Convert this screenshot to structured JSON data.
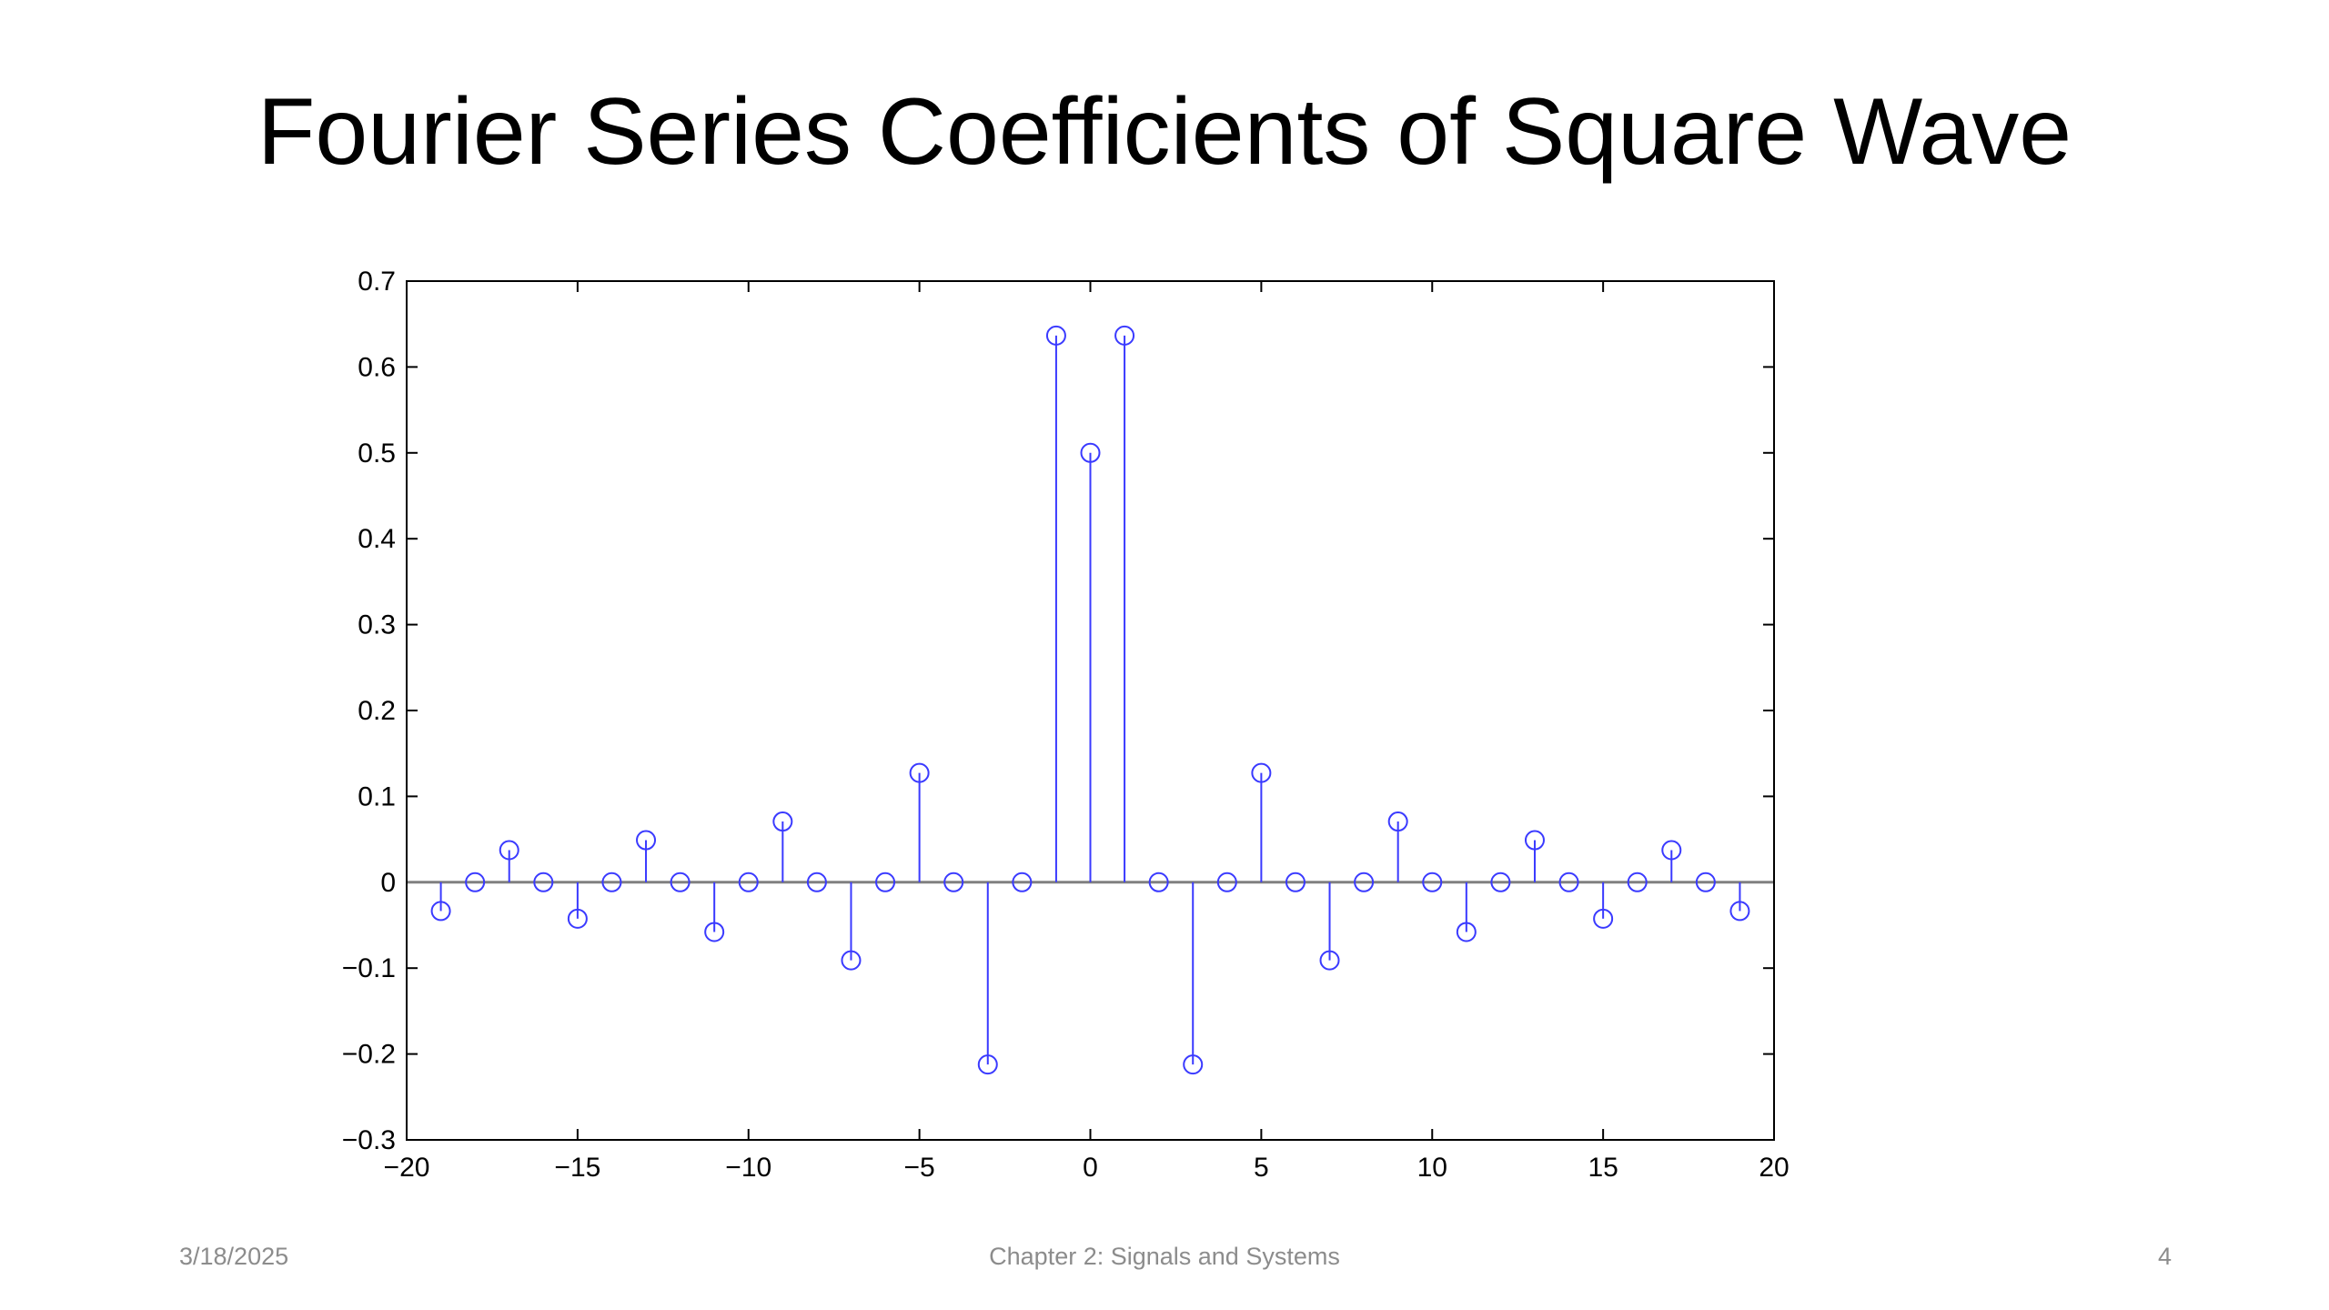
{
  "slide": {
    "title": "Fourier Series Coefficients of Square Wave",
    "footer_date": "3/18/2025",
    "footer_center": "Chapter 2: Signals and Systems",
    "footer_page": "4"
  },
  "chart_data": {
    "type": "stem",
    "title": "",
    "xlabel": "",
    "ylabel": "",
    "xlim": [
      -20,
      20
    ],
    "ylim": [
      -0.3,
      0.7
    ],
    "xticks": [
      -20,
      -15,
      -10,
      -5,
      0,
      5,
      10,
      15,
      20
    ],
    "xtick_labels": [
      "−20",
      "−15",
      "−10",
      "−5",
      "0",
      "5",
      "10",
      "15",
      "20"
    ],
    "yticks": [
      -0.3,
      -0.2,
      -0.1,
      0,
      0.1,
      0.2,
      0.3,
      0.4,
      0.5,
      0.6,
      0.7
    ],
    "ytick_labels": [
      "−0.3",
      "−0.2",
      "−0.1",
      "0",
      "0.1",
      "0.2",
      "0.3",
      "0.4",
      "0.5",
      "0.6",
      "0.7"
    ],
    "grid": false,
    "colors": {
      "stem": "#3a3aff",
      "baseline": "#808080",
      "axes": "#000000"
    },
    "x": [
      -19,
      -18,
      -17,
      -16,
      -15,
      -14,
      -13,
      -12,
      -11,
      -10,
      -9,
      -8,
      -7,
      -6,
      -5,
      -4,
      -3,
      -2,
      -1,
      0,
      1,
      2,
      3,
      4,
      5,
      6,
      7,
      8,
      9,
      10,
      11,
      12,
      13,
      14,
      15,
      16,
      17,
      18,
      19
    ],
    "y": [
      -0.0335,
      0,
      0.0374,
      0,
      -0.0424,
      0,
      0.049,
      0,
      -0.0579,
      0,
      0.0707,
      0,
      -0.0909,
      0,
      0.1273,
      0,
      -0.2122,
      0,
      0.6366,
      0.5,
      0.6366,
      0,
      -0.2122,
      0,
      0.1273,
      0,
      -0.0909,
      0,
      0.0707,
      0,
      -0.0579,
      0,
      0.049,
      0,
      -0.0424,
      0,
      0.0374,
      0,
      -0.0335
    ]
  }
}
